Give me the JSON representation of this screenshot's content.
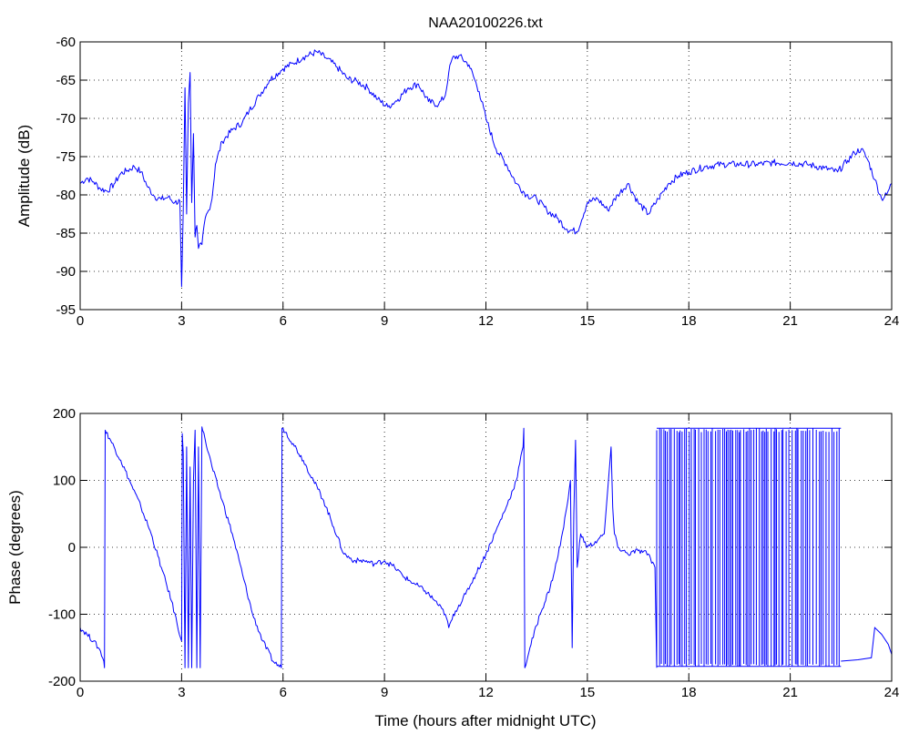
{
  "chart_data": [
    {
      "type": "line",
      "title": "NAA20100226.txt",
      "xlabel": "",
      "ylabel": "Amplitude (dB)",
      "xlim": [
        0,
        24
      ],
      "ylim": [
        -95,
        -60
      ],
      "xticks": [
        "0",
        "3",
        "6",
        "9",
        "12",
        "15",
        "18",
        "21",
        "24"
      ],
      "yticks": [
        "-60",
        "-65",
        "-70",
        "-75",
        "-80",
        "-85",
        "-90",
        "-95"
      ],
      "grid": true,
      "line_color": "#0000ff",
      "series": [
        {
          "x": [
            0,
            0.2,
            0.4,
            0.6,
            0.8,
            1.0,
            1.2,
            1.4,
            1.6,
            1.8,
            2.0,
            2.2,
            2.4,
            2.6,
            2.8,
            2.95,
            3.0,
            3.05,
            3.1,
            3.15,
            3.2,
            3.25,
            3.3,
            3.35,
            3.4,
            3.45,
            3.5,
            3.6,
            3.7,
            3.8,
            3.9,
            4.0,
            4.2,
            4.5,
            4.8,
            5.0,
            5.3,
            5.6,
            6.0,
            6.3,
            6.6,
            7.0,
            7.3,
            7.6,
            7.9,
            8.2,
            8.5,
            8.8,
            9.1,
            9.4,
            9.7,
            10.0,
            10.3,
            10.6,
            10.8,
            10.9,
            11.0,
            11.2,
            11.5,
            11.8,
            12.0,
            12.3,
            12.6,
            12.9,
            13.2,
            13.5,
            13.8,
            14.1,
            14.4,
            14.7,
            15.0,
            15.3,
            15.6,
            15.9,
            16.2,
            16.5,
            16.8,
            17.1,
            17.4,
            17.7,
            18.0,
            18.5,
            19.0,
            19.5,
            20.0,
            20.5,
            21.0,
            21.5,
            22.0,
            22.4,
            22.7,
            22.9,
            23.1,
            23.3,
            23.5,
            23.7,
            23.85,
            24.0
          ],
          "y": [
            -78.5,
            -77.8,
            -78.3,
            -79.2,
            -79.5,
            -78.6,
            -77.2,
            -76.8,
            -76.3,
            -77.0,
            -79.0,
            -80.2,
            -80.6,
            -80.3,
            -81.0,
            -80.8,
            -92.0,
            -82.0,
            -66.0,
            -82.5,
            -68.0,
            -64.0,
            -81.0,
            -72.0,
            -85.5,
            -84.0,
            -87.0,
            -86.5,
            -83.0,
            -82.0,
            -80.5,
            -76.0,
            -73.0,
            -71.5,
            -70.5,
            -69.0,
            -67.0,
            -65.0,
            -63.5,
            -62.8,
            -62.0,
            -61.3,
            -62.2,
            -63.3,
            -64.8,
            -65.2,
            -66.0,
            -67.5,
            -68.5,
            -67.5,
            -66.0,
            -65.5,
            -67.8,
            -68.2,
            -67.0,
            -64.0,
            -62.2,
            -61.8,
            -63.0,
            -66.5,
            -70.0,
            -74.0,
            -76.0,
            -78.5,
            -80.0,
            -80.5,
            -82.0,
            -83.0,
            -84.5,
            -84.8,
            -81.0,
            -80.5,
            -82.0,
            -80.0,
            -78.5,
            -81.0,
            -82.5,
            -80.5,
            -78.5,
            -77.5,
            -77.0,
            -76.3,
            -76.0,
            -76.0,
            -76.0,
            -75.8,
            -75.8,
            -76.0,
            -76.5,
            -77.0,
            -75.5,
            -74.5,
            -74.0,
            -75.5,
            -78.0,
            -80.5,
            -80.0,
            -78.5
          ]
        }
      ]
    },
    {
      "type": "line",
      "title": "",
      "xlabel": "Time (hours after midnight UTC)",
      "ylabel": "Phase (degrees)",
      "xlim": [
        0,
        24
      ],
      "ylim": [
        -200,
        200
      ],
      "xticks": [
        "0",
        "3",
        "6",
        "9",
        "12",
        "15",
        "18",
        "21",
        "24"
      ],
      "yticks": [
        "200",
        "100",
        "0",
        "-100",
        "-200"
      ],
      "grid": true,
      "line_color": "#0000ff",
      "series": [
        {
          "x": [
            0,
            0.2,
            0.4,
            0.6,
            0.7,
            0.72,
            0.74,
            0.9,
            1.2,
            1.5,
            1.8,
            2.1,
            2.4,
            2.7,
            3.0,
            3.02,
            3.05,
            3.1,
            3.15,
            3.2,
            3.25,
            3.3,
            3.35,
            3.4,
            3.45,
            3.5,
            3.55,
            3.6,
            3.62,
            3.7,
            3.9,
            4.2,
            4.5,
            4.8,
            5.1,
            5.4,
            5.7,
            5.95,
            5.97,
            6.0,
            6.3,
            6.6,
            6.9,
            7.2,
            7.5,
            7.8,
            8.1,
            8.4,
            8.7,
            9.0,
            9.3,
            9.6,
            9.9,
            10.2,
            10.5,
            10.8,
            10.9,
            11.1,
            11.4,
            11.7,
            12.0,
            12.3,
            12.6,
            12.9,
            13.1,
            13.12,
            13.15,
            13.3,
            13.6,
            13.9,
            14.1,
            14.3,
            14.5,
            14.55,
            14.6,
            14.65,
            14.7,
            14.8,
            15.0,
            15.3,
            15.5,
            15.7,
            15.75,
            15.8,
            15.9,
            16.2,
            16.5,
            16.8,
            17.0,
            17.05
          ],
          "y": [
            -120,
            -130,
            -140,
            -155,
            -170,
            -180,
            175,
            160,
            130,
            95,
            60,
            20,
            -30,
            -80,
            -140,
            170,
            140,
            -180,
            150,
            -180,
            120,
            -180,
            100,
            175,
            -180,
            150,
            -180,
            180,
            175,
            160,
            120,
            70,
            20,
            -40,
            -100,
            -140,
            -170,
            -180,
            178,
            178,
            155,
            130,
            100,
            70,
            30,
            -10,
            -20,
            -20,
            -25,
            -20,
            -30,
            -45,
            -55,
            -65,
            -80,
            -100,
            -120,
            -95,
            -70,
            -40,
            -10,
            25,
            60,
            100,
            150,
            178,
            -180,
            -150,
            -100,
            -60,
            -20,
            30,
            100,
            -150,
            50,
            160,
            -30,
            20,
            0,
            10,
            20,
            150,
            60,
            20,
            0,
            -10,
            -5,
            -10,
            -30,
            -180
          ]
        }
      ]
    }
  ]
}
